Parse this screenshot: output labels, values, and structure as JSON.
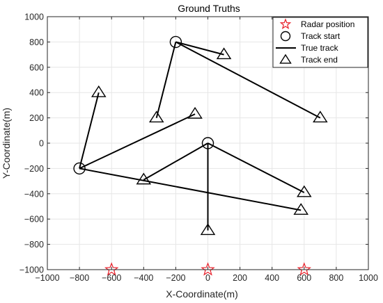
{
  "chart_data": {
    "type": "line",
    "title": "Ground Truths",
    "xlabel": "X-Coordinate(m)",
    "ylabel": "Y-Coordinate(m)",
    "xlim": [
      -1000,
      1000
    ],
    "ylim": [
      -1000,
      1000
    ],
    "xticks": [
      -1000,
      -800,
      -600,
      -400,
      -200,
      0,
      200,
      400,
      600,
      800,
      1000
    ],
    "yticks": [
      -1000,
      -800,
      -600,
      -400,
      -200,
      0,
      200,
      400,
      600,
      800,
      1000
    ],
    "xtick_labels": [
      "−1000",
      "−800",
      "−600",
      "−400",
      "−200",
      "0",
      "200",
      "400",
      "600",
      "800",
      "1000"
    ],
    "ytick_labels": [
      "−1000",
      "−800",
      "−600",
      "−400",
      "−200",
      "0",
      "200",
      "400",
      "600",
      "800",
      "1000"
    ],
    "grid": true,
    "legend_position": "top-right",
    "legend": [
      {
        "label": "Radar position",
        "marker": "star",
        "color": "#e8202a"
      },
      {
        "label": "Track start",
        "marker": "circle",
        "color": "#000000"
      },
      {
        "label": "True track",
        "marker": "line",
        "color": "#000000"
      },
      {
        "label": "Track end",
        "marker": "triangle",
        "color": "#000000"
      }
    ],
    "radar_positions": [
      {
        "x": -600,
        "y": -1000
      },
      {
        "x": 0,
        "y": -1000
      },
      {
        "x": 600,
        "y": -1000
      }
    ],
    "tracks": [
      {
        "start": {
          "x": -200,
          "y": 800
        },
        "end": {
          "x": 100,
          "y": 700
        }
      },
      {
        "start": {
          "x": -200,
          "y": 800
        },
        "end": {
          "x": 700,
          "y": 200
        }
      },
      {
        "start": {
          "x": -200,
          "y": 800
        },
        "end": {
          "x": -320,
          "y": 200
        }
      },
      {
        "start": {
          "x": -800,
          "y": -200
        },
        "end": {
          "x": -680,
          "y": 400
        }
      },
      {
        "start": {
          "x": -800,
          "y": -200
        },
        "end": {
          "x": -80,
          "y": 230
        }
      },
      {
        "start": {
          "x": -800,
          "y": -200
        },
        "end": {
          "x": 580,
          "y": -530
        }
      },
      {
        "start": {
          "x": 0,
          "y": 0
        },
        "end": {
          "x": -400,
          "y": -290
        }
      },
      {
        "start": {
          "x": 0,
          "y": 0
        },
        "end": {
          "x": 600,
          "y": -390
        }
      },
      {
        "start": {
          "x": 0,
          "y": 0
        },
        "end": {
          "x": 0,
          "y": -690
        }
      }
    ],
    "colors": {
      "radar": "#e8202a",
      "track": "#000000",
      "grid": "#e6e6e6",
      "axes": "#262626"
    }
  }
}
